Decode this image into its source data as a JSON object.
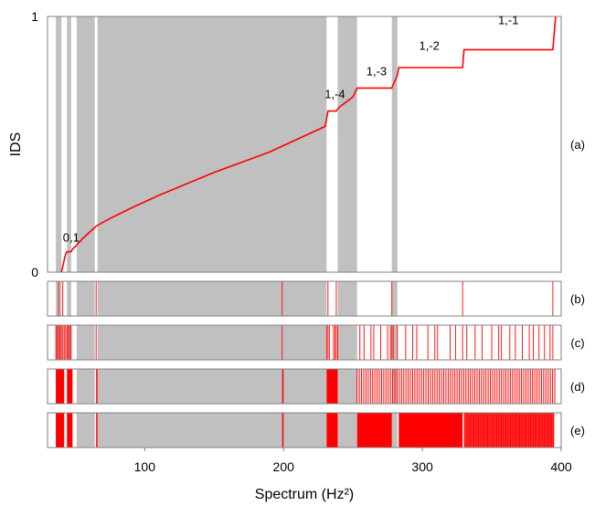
{
  "chart_data": {
    "type": "line",
    "xlabel": "Spectrum (Hz²)",
    "ylabel": "IDS",
    "xlim": [
      30,
      400
    ],
    "x_ticks": [
      100,
      200,
      300,
      400
    ],
    "ylim": [
      0,
      1
    ],
    "y_ticks": [
      0,
      1
    ],
    "panel_labels": [
      "(a)",
      "(b)",
      "(c)",
      "(d)",
      "(e)"
    ],
    "colors": {
      "line": "#ff0000",
      "band": "#c0c0c0",
      "frame": "#808080"
    },
    "spectral_bands": [
      [
        36,
        40
      ],
      [
        44,
        47
      ],
      [
        51,
        64
      ],
      [
        66,
        231
      ],
      [
        239,
        253
      ],
      [
        278,
        282
      ]
    ],
    "ids_curve": {
      "x": [
        40,
        43,
        44,
        47,
        48,
        50,
        55,
        60,
        65,
        75,
        90,
        110,
        130,
        150,
        170,
        190,
        210,
        230,
        232,
        238,
        240,
        245,
        250,
        253,
        254,
        278,
        282,
        283,
        329,
        330,
        394,
        396
      ],
      "y": [
        0.0,
        0.07,
        0.08,
        0.08,
        0.09,
        0.1,
        0.13,
        0.155,
        0.18,
        0.21,
        0.25,
        0.3,
        0.345,
        0.39,
        0.43,
        0.47,
        0.52,
        0.57,
        0.63,
        0.63,
        0.645,
        0.665,
        0.685,
        0.72,
        0.72,
        0.72,
        0.77,
        0.8,
        0.8,
        0.87,
        0.87,
        1.0
      ]
    },
    "annotations": [
      {
        "text": "0,1",
        "x": 47,
        "y": 0.12
      },
      {
        "text": "1,-4",
        "x": 237,
        "y": 0.68
      },
      {
        "text": "1,-3",
        "x": 267,
        "y": 0.77
      },
      {
        "text": "1,-2",
        "x": 305,
        "y": 0.87
      },
      {
        "text": "1,-1",
        "x": 362,
        "y": 0.97
      }
    ],
    "strip_lines": {
      "b": [
        38,
        41,
        65,
        199,
        232,
        238,
        278,
        329,
        394
      ],
      "c": [
        36,
        37,
        38,
        39,
        40,
        41,
        42,
        43,
        44,
        45,
        46,
        47,
        65,
        199,
        231,
        232,
        233,
        236,
        237,
        238,
        239,
        255,
        258,
        263,
        265,
        270,
        275,
        277,
        278,
        279,
        282,
        288,
        293,
        296,
        304,
        309,
        311,
        320,
        324,
        329,
        332,
        338,
        343,
        350,
        355,
        357,
        363,
        367,
        372,
        377,
        380,
        384,
        388,
        392,
        394
      ]
    },
    "strip_fills": {
      "d": [
        [
          36,
          42
        ],
        [
          44,
          48
        ],
        [
          65,
          66
        ],
        [
          199,
          200
        ],
        [
          231,
          239
        ]
      ],
      "e": [
        [
          36,
          42
        ],
        [
          44,
          48
        ],
        [
          65,
          66
        ],
        [
          199,
          200
        ],
        [
          231,
          239
        ],
        [
          253,
          278
        ],
        [
          283,
          329
        ],
        [
          330,
          395
        ]
      ]
    },
    "strip_d_dense": {
      "from": 253,
      "to": 396,
      "step": 1.6
    },
    "strip_e_dense": {
      "from": 330,
      "to": 396,
      "step": 1.1
    }
  }
}
